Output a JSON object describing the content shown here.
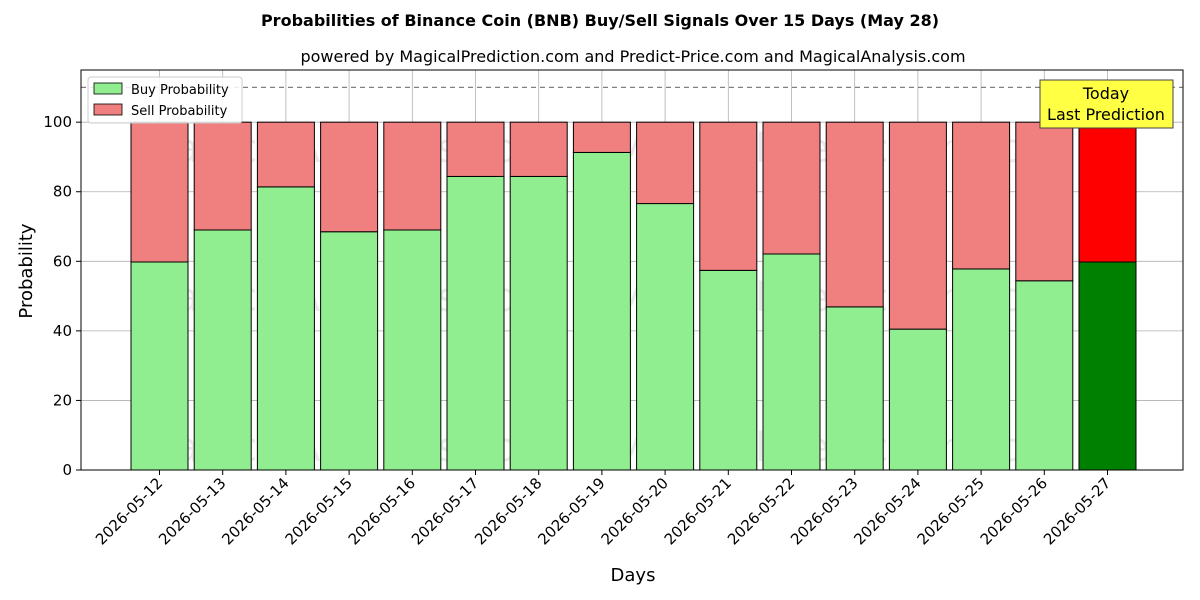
{
  "chart_data": {
    "type": "bar",
    "stacked": true,
    "title": "Probabilities of Binance Coin (BNB) Buy/Sell Signals Over 15 Days (May 28)",
    "subtitle": "powered by MagicalPrediction.com and Predict-Price.com and MagicalAnalysis.com",
    "xlabel": "Days",
    "ylabel": "Probability",
    "ylim": [
      0,
      115
    ],
    "yticks": [
      0,
      20,
      40,
      60,
      80,
      100
    ],
    "grid": true,
    "legend_position": "top-left",
    "categories": [
      "2026-05-12",
      "2026-05-13",
      "2026-05-14",
      "2026-05-15",
      "2026-05-16",
      "2026-05-17",
      "2026-05-18",
      "2026-05-19",
      "2026-05-20",
      "2026-05-21",
      "2026-05-22",
      "2026-05-23",
      "2026-05-24",
      "2026-05-25",
      "2026-05-26",
      "2026-05-27"
    ],
    "series": [
      {
        "name": "Buy Probability",
        "color": "#90ee90",
        "highlight_color": "#008000",
        "values": [
          59.8,
          69.0,
          81.4,
          68.5,
          69.0,
          84.4,
          84.4,
          91.3,
          76.6,
          57.4,
          62.1,
          46.9,
          40.5,
          57.8,
          54.4,
          59.8
        ]
      },
      {
        "name": "Sell Probability",
        "color": "#f08080",
        "highlight_color": "#ff0000",
        "values": [
          40.2,
          31.0,
          18.6,
          31.5,
          31.0,
          15.6,
          15.6,
          8.7,
          23.4,
          42.6,
          37.9,
          53.1,
          59.5,
          42.2,
          45.6,
          40.2
        ]
      }
    ],
    "reference_line": {
      "y": 110,
      "style": "dashed",
      "color": "#808080"
    },
    "annotation": {
      "lines": [
        "Today",
        "Last Prediction"
      ],
      "background": "#ffff44",
      "position": "top-right"
    },
    "watermarks": [
      "MagicalAnalysis.com",
      "MagicalPrediction.com"
    ]
  }
}
